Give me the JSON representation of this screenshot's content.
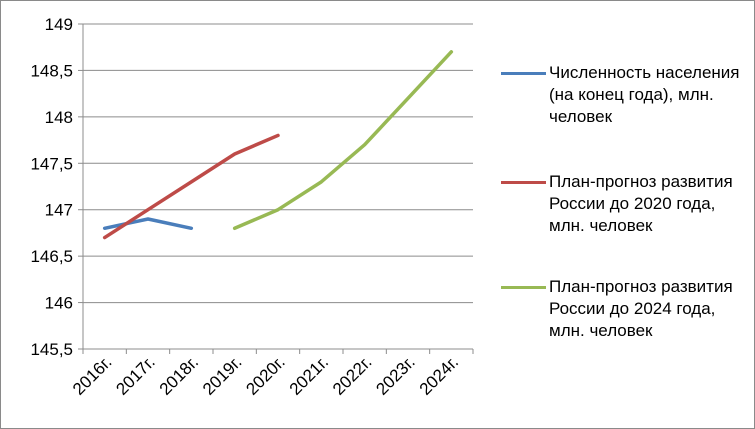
{
  "chart_data": {
    "type": "line",
    "categories": [
      "2016г.",
      "2017г.",
      "2018г.",
      "2019г.",
      "2020г.",
      "2021г.",
      "2022г.",
      "2023г.",
      "2024г."
    ],
    "ylim": [
      145.5,
      149
    ],
    "yticks": [
      "145,5",
      "146",
      "146,5",
      "147",
      "147,5",
      "148",
      "148,5",
      "149"
    ],
    "ytick_values": [
      145.5,
      146,
      146.5,
      147,
      147.5,
      148,
      148.5,
      149
    ],
    "grid": true,
    "legend_position": "right",
    "series": [
      {
        "name": "Численность населения (на конец года), млн. человек",
        "color": "#4a7ebb",
        "values": [
          146.8,
          146.9,
          146.8,
          null,
          null,
          null,
          null,
          null,
          null
        ]
      },
      {
        "name": "План-прогноз развития России до 2020 года, млн. человек",
        "color": "#be4b48",
        "values": [
          146.7,
          147.0,
          147.3,
          147.6,
          147.8,
          null,
          null,
          null,
          null
        ]
      },
      {
        "name": "План-прогноз развития России до 2024 года, млн. человек",
        "color": "#98b954",
        "values": [
          null,
          null,
          null,
          146.8,
          147.0,
          147.3,
          147.7,
          148.2,
          148.7
        ]
      }
    ]
  }
}
